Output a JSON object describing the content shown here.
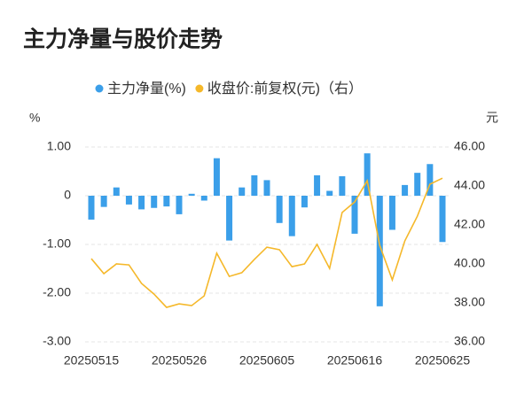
{
  "chart_data": {
    "type": "bar_line",
    "title": "主力净量与股价走势",
    "y_unit": "%",
    "y2_unit": "元",
    "categories": [
      "20250515",
      null,
      null,
      null,
      null,
      null,
      null,
      "20250526",
      null,
      null,
      null,
      null,
      null,
      null,
      "20250605",
      null,
      null,
      null,
      null,
      null,
      null,
      "20250616",
      null,
      null,
      null,
      null,
      null,
      null,
      "20250625"
    ],
    "series": [
      {
        "name": "主力净量(%)",
        "type": "bar",
        "color": "#3b9fe9",
        "axis": "y",
        "values": [
          -0.49,
          -0.23,
          0.17,
          -0.18,
          -0.28,
          -0.25,
          -0.22,
          -0.38,
          0.04,
          -0.1,
          0.77,
          -0.92,
          0.17,
          0.42,
          0.32,
          -0.56,
          -0.83,
          -0.24,
          0.42,
          0.1,
          0.4,
          -0.78,
          0.87,
          -2.27,
          -0.7,
          0.22,
          0.47,
          0.65,
          -0.95
        ]
      },
      {
        "name": "收盘价:前复权(元)（右）",
        "type": "line",
        "color": "#f5b82a",
        "axis": "y2",
        "values": [
          40.27,
          39.5,
          40.0,
          39.95,
          39.0,
          38.45,
          37.77,
          37.95,
          37.86,
          38.36,
          40.55,
          39.36,
          39.55,
          40.23,
          40.86,
          40.73,
          39.86,
          40.0,
          41.0,
          39.77,
          42.64,
          43.18,
          44.27,
          40.95,
          39.18,
          41.18,
          42.45,
          44.09,
          44.4
        ]
      }
    ],
    "ylim": [
      -3,
      1
    ],
    "yticks": [
      {
        "value": -3,
        "label": "-3.00"
      },
      {
        "value": -2,
        "label": "-2.00"
      },
      {
        "value": -1,
        "label": "-1.00"
      },
      0,
      {
        "value": 1,
        "label": "1.00"
      }
    ],
    "y2lim": [
      36,
      46
    ],
    "y2ticks": [
      {
        "value": 36,
        "label": "36.00"
      },
      {
        "value": 38,
        "label": "38.00"
      },
      {
        "value": 40,
        "label": "40.00"
      },
      {
        "value": 42,
        "label": "42.00"
      },
      {
        "value": 44,
        "label": "44.00"
      },
      {
        "value": 46,
        "label": "46.00"
      }
    ],
    "grid": true
  }
}
